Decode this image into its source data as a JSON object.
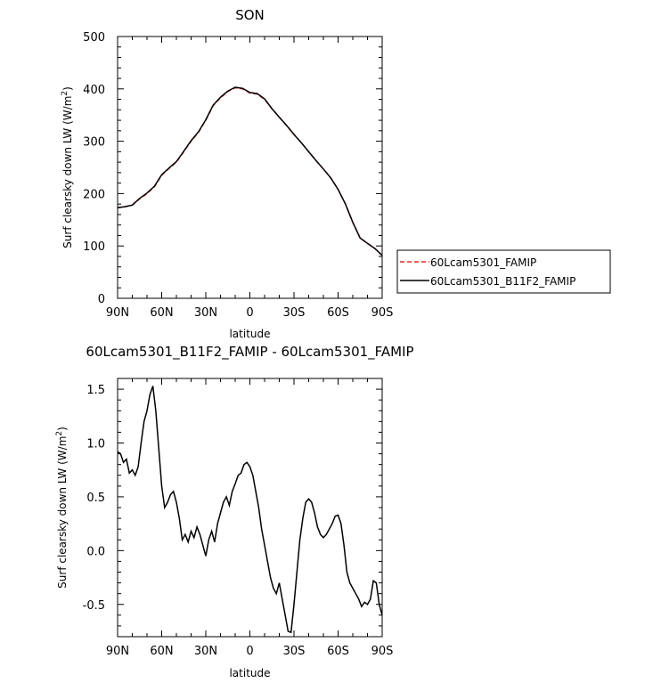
{
  "chart_data": [
    {
      "type": "line",
      "title": "SON",
      "xlabel": "latitude",
      "ylabel": "Surf clearsky down LW (W/m",
      "ylabel_sup": "2",
      "ylabel_close": ")",
      "xlim": [
        90,
        -90
      ],
      "ylim": [
        0,
        500
      ],
      "xticks": [
        90,
        60,
        30,
        0,
        -30,
        -60,
        -90
      ],
      "xtick_labels": [
        "90N",
        "60N",
        "30N",
        "0",
        "30S",
        "60S",
        "90S"
      ],
      "yticks": [
        0,
        100,
        200,
        300,
        400,
        500
      ],
      "ytick_labels": [
        "0",
        "100",
        "200",
        "300",
        "400",
        "500"
      ],
      "legend": [
        "60Lcam5301_FAMIP",
        "60Lcam5301_B11F2_FAMIP"
      ],
      "legend_placement": "right",
      "colors": {
        "60Lcam5301_FAMIP": "#e8281f",
        "60Lcam5301_B11F2_FAMIP": "#000000"
      },
      "x": [
        90,
        85,
        80,
        75,
        70,
        65,
        60,
        55,
        50,
        45,
        40,
        35,
        30,
        25,
        20,
        15,
        10,
        5,
        0,
        -5,
        -10,
        -15,
        -20,
        -25,
        -30,
        -35,
        -40,
        -45,
        -50,
        -55,
        -60,
        -65,
        -70,
        -75,
        -80,
        -85,
        -90
      ],
      "series": [
        {
          "name": "60Lcam5301_FAMIP",
          "style": "dashed",
          "values": [
            173,
            175,
            178,
            190,
            200,
            213,
            235,
            248,
            260,
            280,
            300,
            317,
            340,
            368,
            383,
            395,
            402,
            400,
            392,
            390,
            380,
            362,
            346,
            330,
            313,
            297,
            280,
            263,
            247,
            230,
            208,
            180,
            145,
            115,
            105,
            95,
            82
          ]
        },
        {
          "name": "60Lcam5301_B11F2_FAMIP",
          "style": "solid",
          "values": [
            173,
            175,
            178,
            191,
            201,
            214,
            236,
            249,
            261,
            281,
            301,
            318,
            341,
            369,
            384,
            396,
            403,
            401,
            393,
            391,
            381,
            362,
            346,
            330,
            313,
            297,
            280,
            263,
            247,
            230,
            208,
            180,
            145,
            115,
            105,
            95,
            82
          ]
        }
      ]
    },
    {
      "type": "line",
      "title": "60Lcam5301_B11F2_FAMIP - 60Lcam5301_FAMIP",
      "xlabel": "latitude",
      "ylabel": "Surf clearsky down LW (W/m",
      "ylabel_sup": "2",
      "ylabel_close": ")",
      "xlim": [
        90,
        -90
      ],
      "ylim": [
        -0.8,
        1.6
      ],
      "xticks": [
        90,
        60,
        30,
        0,
        -30,
        -60,
        -90
      ],
      "xtick_labels": [
        "90N",
        "60N",
        "30N",
        "0",
        "30S",
        "60S",
        "90S"
      ],
      "yticks": [
        -0.5,
        0.0,
        0.5,
        1.0,
        1.5
      ],
      "ytick_labels": [
        "-0.5",
        "0.0",
        "0.5",
        "1.0",
        "1.5"
      ],
      "colors": {
        "line": "#000000"
      },
      "x": [
        90,
        88,
        86,
        84,
        82,
        80,
        78,
        76,
        74,
        72,
        70,
        68,
        66,
        64,
        62,
        60,
        58,
        56,
        54,
        52,
        50,
        48,
        46,
        44,
        42,
        40,
        38,
        36,
        34,
        32,
        30,
        28,
        26,
        24,
        22,
        20,
        18,
        16,
        14,
        12,
        10,
        8,
        6,
        4,
        2,
        0,
        -2,
        -4,
        -6,
        -8,
        -10,
        -12,
        -14,
        -16,
        -18,
        -20,
        -22,
        -24,
        -26,
        -28,
        -30,
        -32,
        -34,
        -36,
        -38,
        -40,
        -42,
        -44,
        -46,
        -48,
        -50,
        -52,
        -54,
        -56,
        -58,
        -60,
        -62,
        -64,
        -66,
        -68,
        -70,
        -72,
        -74,
        -76,
        -78,
        -80,
        -82,
        -84,
        -86,
        -88,
        -90
      ],
      "series": [
        {
          "name": "",
          "values": [
            0.92,
            0.9,
            0.82,
            0.85,
            0.72,
            0.75,
            0.7,
            0.78,
            1.0,
            1.2,
            1.3,
            1.45,
            1.53,
            1.3,
            0.95,
            0.6,
            0.4,
            0.45,
            0.52,
            0.55,
            0.45,
            0.3,
            0.1,
            0.15,
            0.08,
            0.18,
            0.12,
            0.22,
            0.15,
            0.05,
            -0.05,
            0.1,
            0.18,
            0.08,
            0.25,
            0.35,
            0.45,
            0.5,
            0.42,
            0.55,
            0.62,
            0.7,
            0.72,
            0.8,
            0.82,
            0.78,
            0.7,
            0.55,
            0.4,
            0.2,
            0.05,
            -0.1,
            -0.25,
            -0.35,
            -0.4,
            -0.3,
            -0.45,
            -0.6,
            -0.75,
            -0.76,
            -0.5,
            -0.2,
            0.1,
            0.3,
            0.45,
            0.48,
            0.45,
            0.35,
            0.22,
            0.15,
            0.12,
            0.15,
            0.2,
            0.25,
            0.32,
            0.33,
            0.25,
            0.05,
            -0.2,
            -0.3,
            -0.35,
            -0.4,
            -0.45,
            -0.52,
            -0.48,
            -0.5,
            -0.45,
            -0.28,
            -0.3,
            -0.5,
            -0.6
          ]
        }
      ]
    }
  ]
}
